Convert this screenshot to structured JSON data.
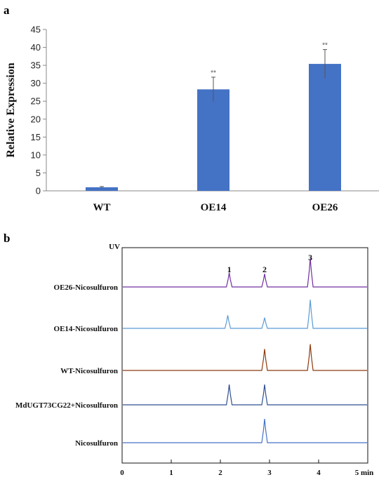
{
  "panel_a_letter": "a",
  "panel_b_letter": "b",
  "chart_data": [
    {
      "type": "bar",
      "categories": [
        "WT",
        "OE14",
        "OE26"
      ],
      "values": [
        1.0,
        28.3,
        35.4
      ],
      "errors": [
        0.2,
        3.4,
        4.0
      ],
      "significance": [
        "",
        "**",
        "**"
      ],
      "xlabel": "",
      "ylabel": "Relative Expression",
      "ylim": [
        0,
        45
      ],
      "yticks": [
        0,
        5,
        10,
        15,
        20,
        25,
        30,
        35,
        40,
        45
      ],
      "bar_color": "#4472c4",
      "grid": false
    },
    {
      "type": "line",
      "ylabel": "UV",
      "xunit": "min",
      "xlim": [
        0,
        5
      ],
      "xticks": [
        "0",
        "1",
        "2",
        "3",
        "4",
        "5 min"
      ],
      "peak_labels": [
        {
          "label": "1",
          "x": 2.18
        },
        {
          "label": "2",
          "x": 2.9
        },
        {
          "label": "3",
          "x": 3.83
        }
      ],
      "series": [
        {
          "name": "OE26-Nicosulfuron",
          "color": "#7030a0",
          "peaks": [
            {
              "x": 2.18,
              "h": 0.6
            },
            {
              "x": 2.9,
              "h": 0.55
            },
            {
              "x": 3.83,
              "h": 1.2
            }
          ]
        },
        {
          "name": "OE14-Nicosulfuron",
          "color": "#5b9bd5",
          "peaks": [
            {
              "x": 2.15,
              "h": 0.55
            },
            {
              "x": 2.9,
              "h": 0.45
            },
            {
              "x": 3.83,
              "h": 1.2
            }
          ]
        },
        {
          "name": "WT-Nicosulfuron",
          "color": "#8b3a0f",
          "peaks": [
            {
              "x": 2.9,
              "h": 0.9
            },
            {
              "x": 3.83,
              "h": 1.1
            }
          ]
        },
        {
          "name": "MdUGT73CG22+Nicosulfuron",
          "color": "#2f4f8f",
          "peaks": [
            {
              "x": 2.18,
              "h": 0.85
            },
            {
              "x": 2.9,
              "h": 0.85
            }
          ]
        },
        {
          "name": "Nicosulfuron",
          "color": "#4472c4",
          "peaks": [
            {
              "x": 2.9,
              "h": 1.0
            }
          ]
        }
      ]
    }
  ]
}
